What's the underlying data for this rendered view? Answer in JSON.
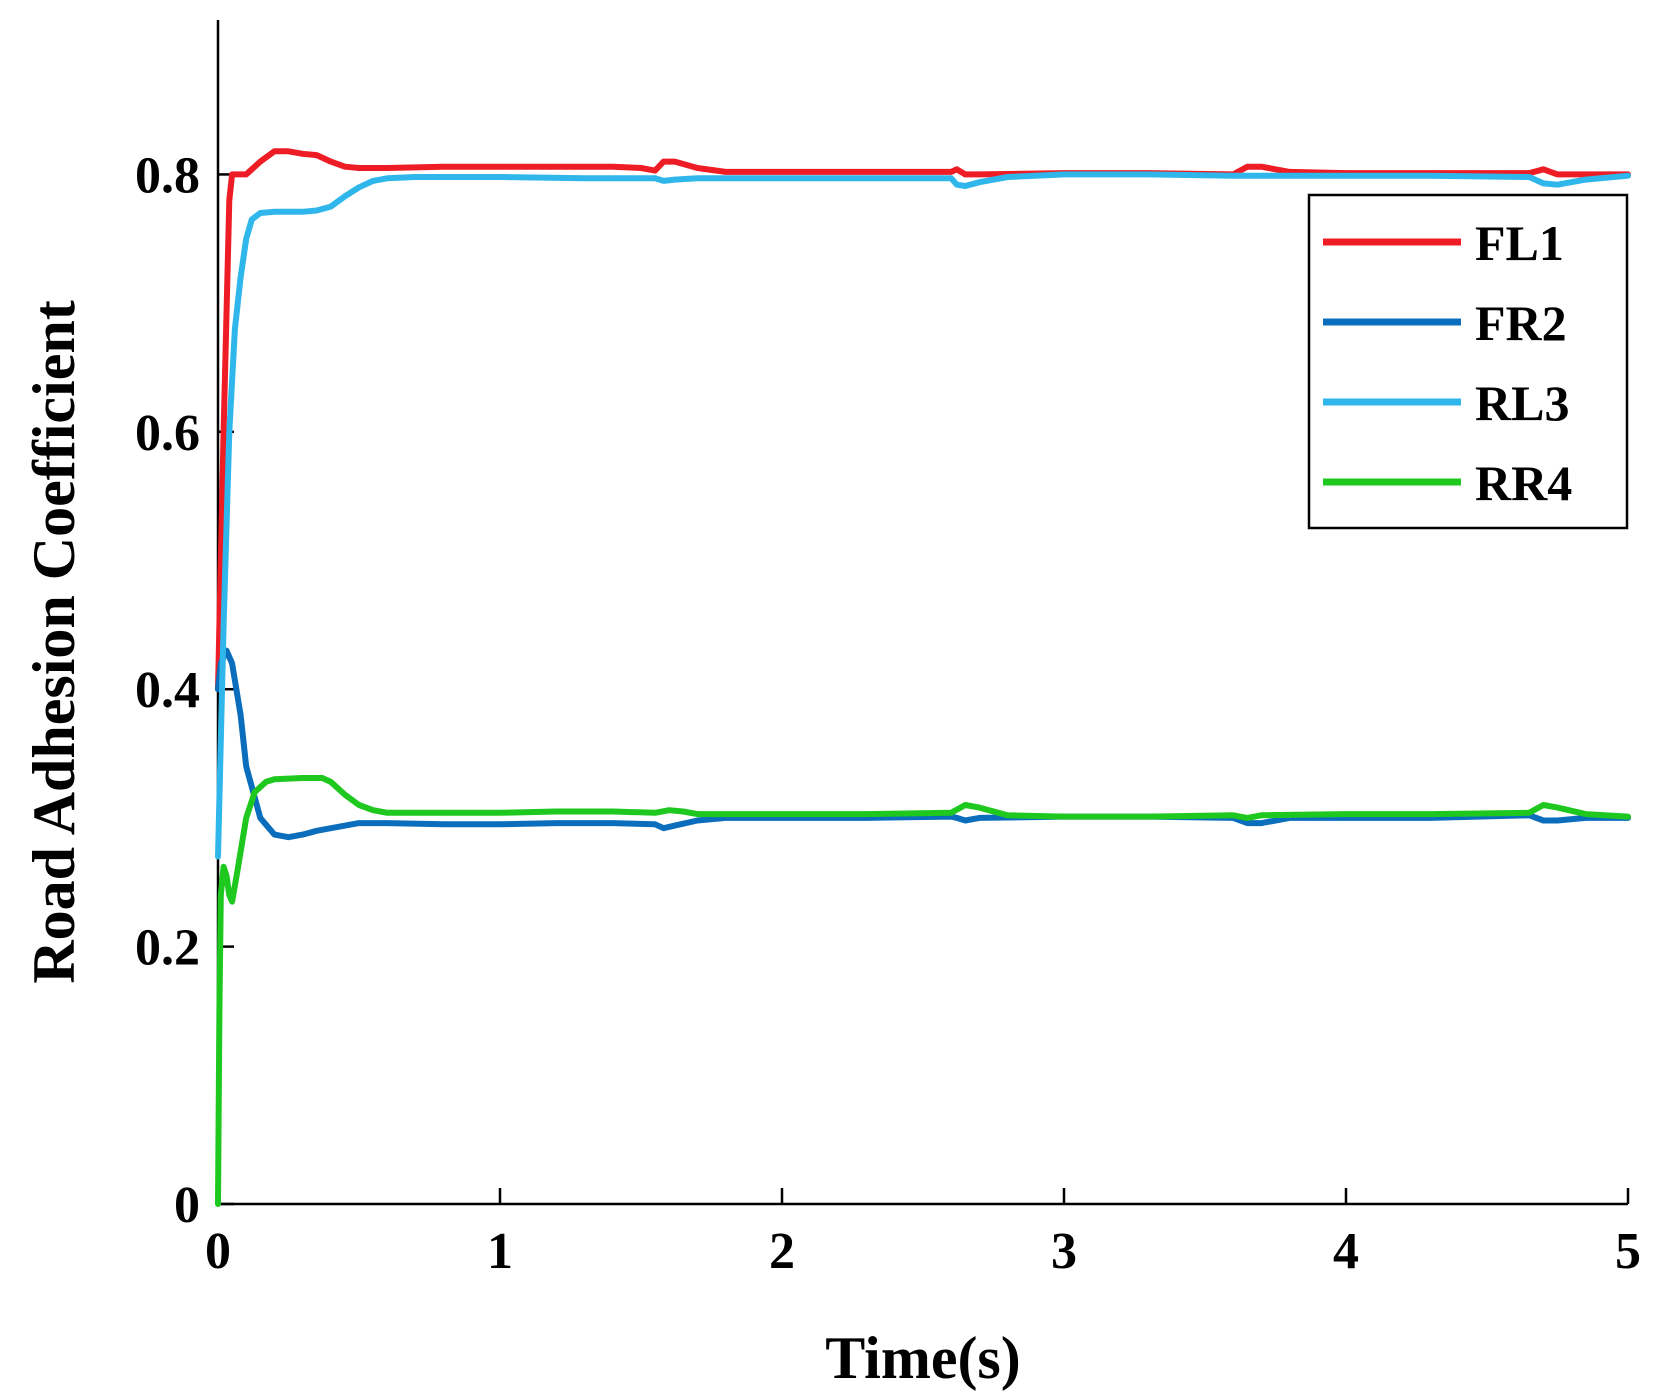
{
  "chart_data": {
    "type": "line",
    "title": "",
    "xlabel": "Time(s)",
    "ylabel": "Road Adhesion Coefficient",
    "xlim": [
      0,
      5
    ],
    "ylim": [
      0,
      0.92
    ],
    "xticks": [
      0,
      1,
      2,
      3,
      4,
      5
    ],
    "yticks": [
      0,
      0.2,
      0.4,
      0.6,
      0.8
    ],
    "xtick_labels": [
      "0",
      "1",
      "2",
      "3",
      "4",
      "5"
    ],
    "ytick_labels": [
      "0",
      "0.2",
      "0.4",
      "0.6",
      "0.8"
    ],
    "grid": false,
    "legend_position": "top-right",
    "series": [
      {
        "name": "FL1",
        "color": "#ee1c25",
        "points": [
          [
            0,
            0.4
          ],
          [
            0.02,
            0.6
          ],
          [
            0.04,
            0.78
          ],
          [
            0.05,
            0.8
          ],
          [
            0.1,
            0.8
          ],
          [
            0.15,
            0.81
          ],
          [
            0.2,
            0.818
          ],
          [
            0.25,
            0.818
          ],
          [
            0.3,
            0.816
          ],
          [
            0.35,
            0.815
          ],
          [
            0.4,
            0.81
          ],
          [
            0.45,
            0.806
          ],
          [
            0.5,
            0.805
          ],
          [
            0.6,
            0.805
          ],
          [
            0.8,
            0.806
          ],
          [
            1.0,
            0.806
          ],
          [
            1.2,
            0.806
          ],
          [
            1.4,
            0.806
          ],
          [
            1.5,
            0.805
          ],
          [
            1.55,
            0.803
          ],
          [
            1.58,
            0.81
          ],
          [
            1.62,
            0.81
          ],
          [
            1.7,
            0.805
          ],
          [
            1.8,
            0.802
          ],
          [
            2.0,
            0.802
          ],
          [
            2.3,
            0.802
          ],
          [
            2.6,
            0.802
          ],
          [
            2.62,
            0.804
          ],
          [
            2.65,
            0.8
          ],
          [
            2.7,
            0.8
          ],
          [
            3.0,
            0.801
          ],
          [
            3.3,
            0.801
          ],
          [
            3.6,
            0.8
          ],
          [
            3.65,
            0.806
          ],
          [
            3.7,
            0.806
          ],
          [
            3.8,
            0.802
          ],
          [
            4.0,
            0.801
          ],
          [
            4.3,
            0.801
          ],
          [
            4.65,
            0.801
          ],
          [
            4.7,
            0.804
          ],
          [
            4.75,
            0.8
          ],
          [
            5.0,
            0.8
          ]
        ]
      },
      {
        "name": "FR2",
        "color": "#0a6ebd",
        "points": [
          [
            0,
            0.4
          ],
          [
            0.01,
            0.42
          ],
          [
            0.03,
            0.43
          ],
          [
            0.05,
            0.42
          ],
          [
            0.08,
            0.38
          ],
          [
            0.1,
            0.34
          ],
          [
            0.15,
            0.3
          ],
          [
            0.2,
            0.287
          ],
          [
            0.25,
            0.285
          ],
          [
            0.3,
            0.287
          ],
          [
            0.35,
            0.29
          ],
          [
            0.4,
            0.292
          ],
          [
            0.5,
            0.296
          ],
          [
            0.6,
            0.296
          ],
          [
            0.8,
            0.295
          ],
          [
            1.0,
            0.295
          ],
          [
            1.2,
            0.296
          ],
          [
            1.4,
            0.296
          ],
          [
            1.55,
            0.295
          ],
          [
            1.58,
            0.292
          ],
          [
            1.62,
            0.294
          ],
          [
            1.7,
            0.298
          ],
          [
            1.8,
            0.3
          ],
          [
            2.0,
            0.3
          ],
          [
            2.3,
            0.3
          ],
          [
            2.6,
            0.301
          ],
          [
            2.62,
            0.3
          ],
          [
            2.65,
            0.298
          ],
          [
            2.7,
            0.3
          ],
          [
            3.0,
            0.301
          ],
          [
            3.3,
            0.301
          ],
          [
            3.6,
            0.3
          ],
          [
            3.65,
            0.296
          ],
          [
            3.7,
            0.296
          ],
          [
            3.8,
            0.3
          ],
          [
            4.0,
            0.3
          ],
          [
            4.3,
            0.3
          ],
          [
            4.65,
            0.302
          ],
          [
            4.7,
            0.298
          ],
          [
            4.75,
            0.298
          ],
          [
            4.85,
            0.3
          ],
          [
            5.0,
            0.3
          ]
        ]
      },
      {
        "name": "RL3",
        "color": "#2fb6ea",
        "points": [
          [
            0,
            0.27
          ],
          [
            0.02,
            0.45
          ],
          [
            0.04,
            0.6
          ],
          [
            0.06,
            0.68
          ],
          [
            0.08,
            0.72
          ],
          [
            0.1,
            0.75
          ],
          [
            0.12,
            0.765
          ],
          [
            0.15,
            0.77
          ],
          [
            0.2,
            0.771
          ],
          [
            0.25,
            0.771
          ],
          [
            0.3,
            0.771
          ],
          [
            0.35,
            0.772
          ],
          [
            0.4,
            0.775
          ],
          [
            0.45,
            0.783
          ],
          [
            0.5,
            0.79
          ],
          [
            0.55,
            0.795
          ],
          [
            0.6,
            0.797
          ],
          [
            0.7,
            0.798
          ],
          [
            1.0,
            0.798
          ],
          [
            1.3,
            0.797
          ],
          [
            1.5,
            0.797
          ],
          [
            1.55,
            0.797
          ],
          [
            1.58,
            0.795
          ],
          [
            1.62,
            0.796
          ],
          [
            1.7,
            0.797
          ],
          [
            2.0,
            0.797
          ],
          [
            2.3,
            0.797
          ],
          [
            2.6,
            0.797
          ],
          [
            2.62,
            0.792
          ],
          [
            2.65,
            0.791
          ],
          [
            2.7,
            0.794
          ],
          [
            2.8,
            0.798
          ],
          [
            3.0,
            0.8
          ],
          [
            3.3,
            0.8
          ],
          [
            3.6,
            0.799
          ],
          [
            3.65,
            0.799
          ],
          [
            3.7,
            0.799
          ],
          [
            4.0,
            0.799
          ],
          [
            4.3,
            0.799
          ],
          [
            4.65,
            0.798
          ],
          [
            4.7,
            0.793
          ],
          [
            4.75,
            0.792
          ],
          [
            4.85,
            0.796
          ],
          [
            5.0,
            0.799
          ]
        ]
      },
      {
        "name": "RR4",
        "color": "#1ec81e",
        "points": [
          [
            0,
            0
          ],
          [
            0.005,
            0.15
          ],
          [
            0.01,
            0.24
          ],
          [
            0.02,
            0.262
          ],
          [
            0.03,
            0.255
          ],
          [
            0.04,
            0.24
          ],
          [
            0.05,
            0.235
          ],
          [
            0.07,
            0.26
          ],
          [
            0.1,
            0.3
          ],
          [
            0.13,
            0.32
          ],
          [
            0.17,
            0.328
          ],
          [
            0.2,
            0.33
          ],
          [
            0.3,
            0.331
          ],
          [
            0.37,
            0.331
          ],
          [
            0.4,
            0.328
          ],
          [
            0.45,
            0.318
          ],
          [
            0.5,
            0.31
          ],
          [
            0.55,
            0.306
          ],
          [
            0.6,
            0.304
          ],
          [
            0.8,
            0.304
          ],
          [
            1.0,
            0.304
          ],
          [
            1.2,
            0.305
          ],
          [
            1.4,
            0.305
          ],
          [
            1.55,
            0.304
          ],
          [
            1.6,
            0.306
          ],
          [
            1.65,
            0.305
          ],
          [
            1.7,
            0.303
          ],
          [
            2.0,
            0.303
          ],
          [
            2.3,
            0.303
          ],
          [
            2.6,
            0.304
          ],
          [
            2.65,
            0.31
          ],
          [
            2.7,
            0.308
          ],
          [
            2.8,
            0.302
          ],
          [
            3.0,
            0.301
          ],
          [
            3.3,
            0.301
          ],
          [
            3.6,
            0.302
          ],
          [
            3.65,
            0.3
          ],
          [
            3.7,
            0.302
          ],
          [
            4.0,
            0.303
          ],
          [
            4.3,
            0.303
          ],
          [
            4.65,
            0.304
          ],
          [
            4.7,
            0.31
          ],
          [
            4.75,
            0.308
          ],
          [
            4.85,
            0.303
          ],
          [
            5.0,
            0.301
          ]
        ]
      }
    ]
  }
}
